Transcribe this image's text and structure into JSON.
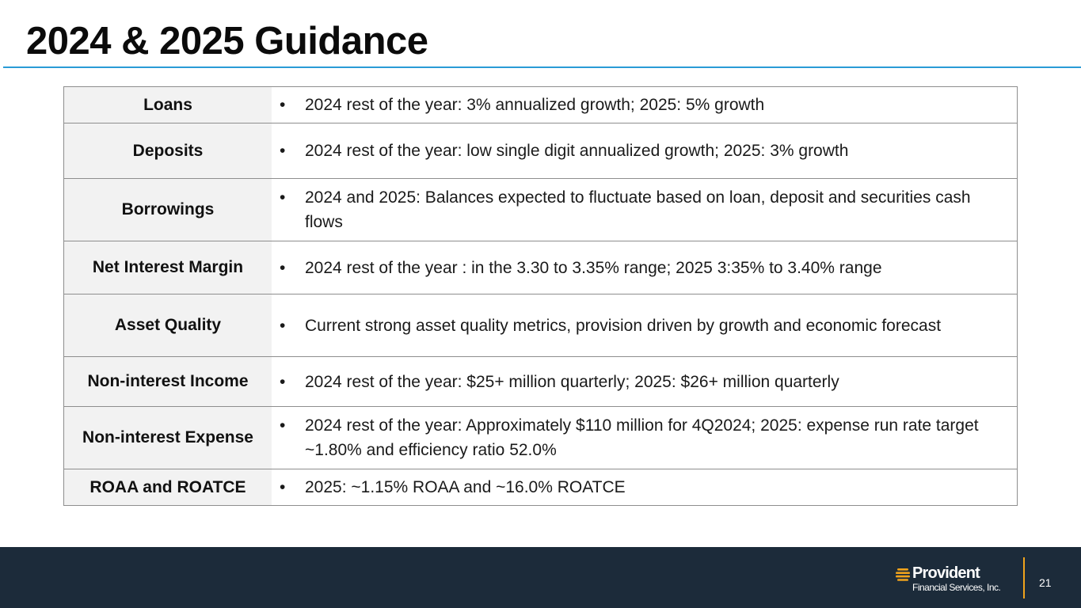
{
  "slide": {
    "title": "2024 & 2025 Guidance",
    "page_number": "21"
  },
  "colors": {
    "accent_rule": "#2a9bd6",
    "footer_bg": "#1c2b3a",
    "brand_orange": "#f0a31c",
    "label_cell_bg": "#f2f2f2"
  },
  "table": {
    "bullet_glyph": "•",
    "rows": [
      {
        "label": "Loans",
        "text": "2024 rest of the year:  3% annualized growth; 2025: 5% growth"
      },
      {
        "label": "Deposits",
        "text": "2024 rest of the year: low single digit annualized growth; 2025: 3% growth"
      },
      {
        "label": "Borrowings",
        "text": "2024 and 2025: Balances expected to fluctuate based on loan, deposit and securities cash flows"
      },
      {
        "label": "Net Interest Margin",
        "text": "2024 rest of the year : in the 3.30 to 3.35% range; 2025 3:35% to 3.40% range"
      },
      {
        "label": "Asset Quality",
        "text": "Current strong asset quality metrics, provision driven by growth and economic forecast"
      },
      {
        "label": "Non-interest Income",
        "text": "2024 rest of the year: $25+ million quarterly; 2025: $26+ million quarterly"
      },
      {
        "label": "Non-interest Expense",
        "text": "2024 rest of the year:  Approximately $110 million for 4Q2024; 2025: expense run rate target ~1.80% and efficiency ratio 52.0%"
      },
      {
        "label": "ROAA and ROATCE",
        "text": "2025: ~1.15% ROAA and ~16.0% ROATCE"
      }
    ]
  },
  "footer": {
    "logo_icon": "provident-logo-icon",
    "logo_name": "Provident",
    "logo_subtitle": "Financial Services, Inc."
  }
}
